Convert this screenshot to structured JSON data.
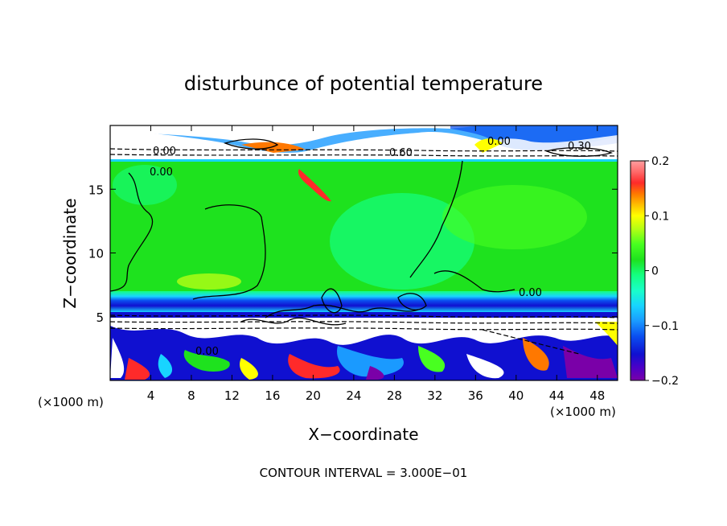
{
  "chart_data": {
    "type": "heatmap",
    "title": "disturbunce of potential temperature",
    "xlabel": "X−coordinate",
    "ylabel": "Z−coordinate",
    "x_unit_left": "(×1000 m)",
    "x_unit_right": "(×1000 m)",
    "xlim": [
      0,
      50
    ],
    "ylim": [
      0,
      20
    ],
    "x_ticks": [
      "4",
      "8",
      "12",
      "16",
      "20",
      "24",
      "28",
      "32",
      "36",
      "40",
      "44",
      "48"
    ],
    "x_tick_values": [
      4,
      8,
      12,
      16,
      20,
      24,
      28,
      32,
      36,
      40,
      44,
      48
    ],
    "y_ticks": [
      "5",
      "10",
      "15"
    ],
    "y_tick_values": [
      5,
      10,
      15
    ],
    "colorbar": {
      "range": [
        -0.2,
        0.2
      ],
      "tick_labels": [
        "0.2",
        "0.1",
        "0",
        "−0.1",
        "−0.2"
      ],
      "tick_values": [
        0.2,
        0.1,
        0.0,
        -0.1,
        -0.2
      ],
      "colors": [
        "#7a00a8",
        "#4b00c8",
        "#1010d0",
        "#0a4ef0",
        "#1a9aff",
        "#18d4ff",
        "#19ffc8",
        "#14ff80",
        "#1ee21e",
        "#48ff20",
        "#b4ff14",
        "#ffff00",
        "#ffbe00",
        "#ff7800",
        "#ff2a2a",
        "#ff6a6a",
        "#ff9ea0"
      ]
    },
    "contour_labels": [
      "0.00",
      "0.00",
      "0.60",
      "0.00",
      "0.30",
      "0.00",
      "0.00"
    ],
    "contour_interval_text": "CONTOUR INTERVAL = 3.000E−01"
  }
}
